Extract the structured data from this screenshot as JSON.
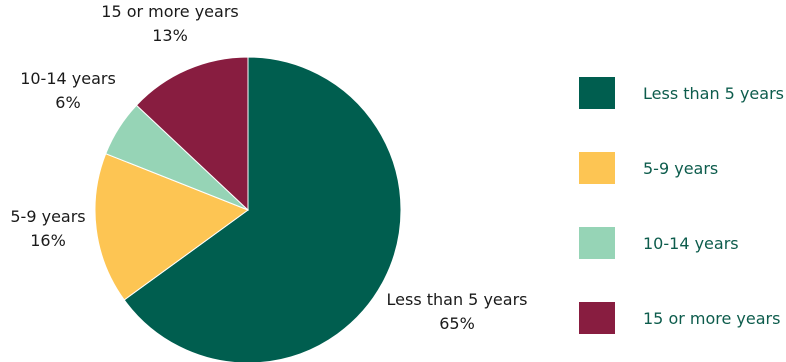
{
  "chart_data": {
    "type": "pie",
    "title": "",
    "start_angle_deg": 0,
    "direction": "clockwise",
    "legend_position": "right",
    "slices": [
      {
        "label": "Less than 5 years",
        "value": 65,
        "value_label": "65%",
        "color": "#005e4f"
      },
      {
        "label": "5-9 years",
        "value": 16,
        "value_label": "16%",
        "color": "#fdc553"
      },
      {
        "label": "10-14 years",
        "value": 6,
        "value_label": "6%",
        "color": "#96d4b6"
      },
      {
        "label": "15 or more years",
        "value": 13,
        "value_label": "13%",
        "color": "#881d40"
      }
    ],
    "legend": [
      {
        "label": "Less than 5 years",
        "color": "#005e4f"
      },
      {
        "label": "5-9 years",
        "color": "#fdc553"
      },
      {
        "label": "10-14 years",
        "color": "#96d4b6"
      },
      {
        "label": "15 or more years",
        "color": "#881d40"
      }
    ]
  }
}
